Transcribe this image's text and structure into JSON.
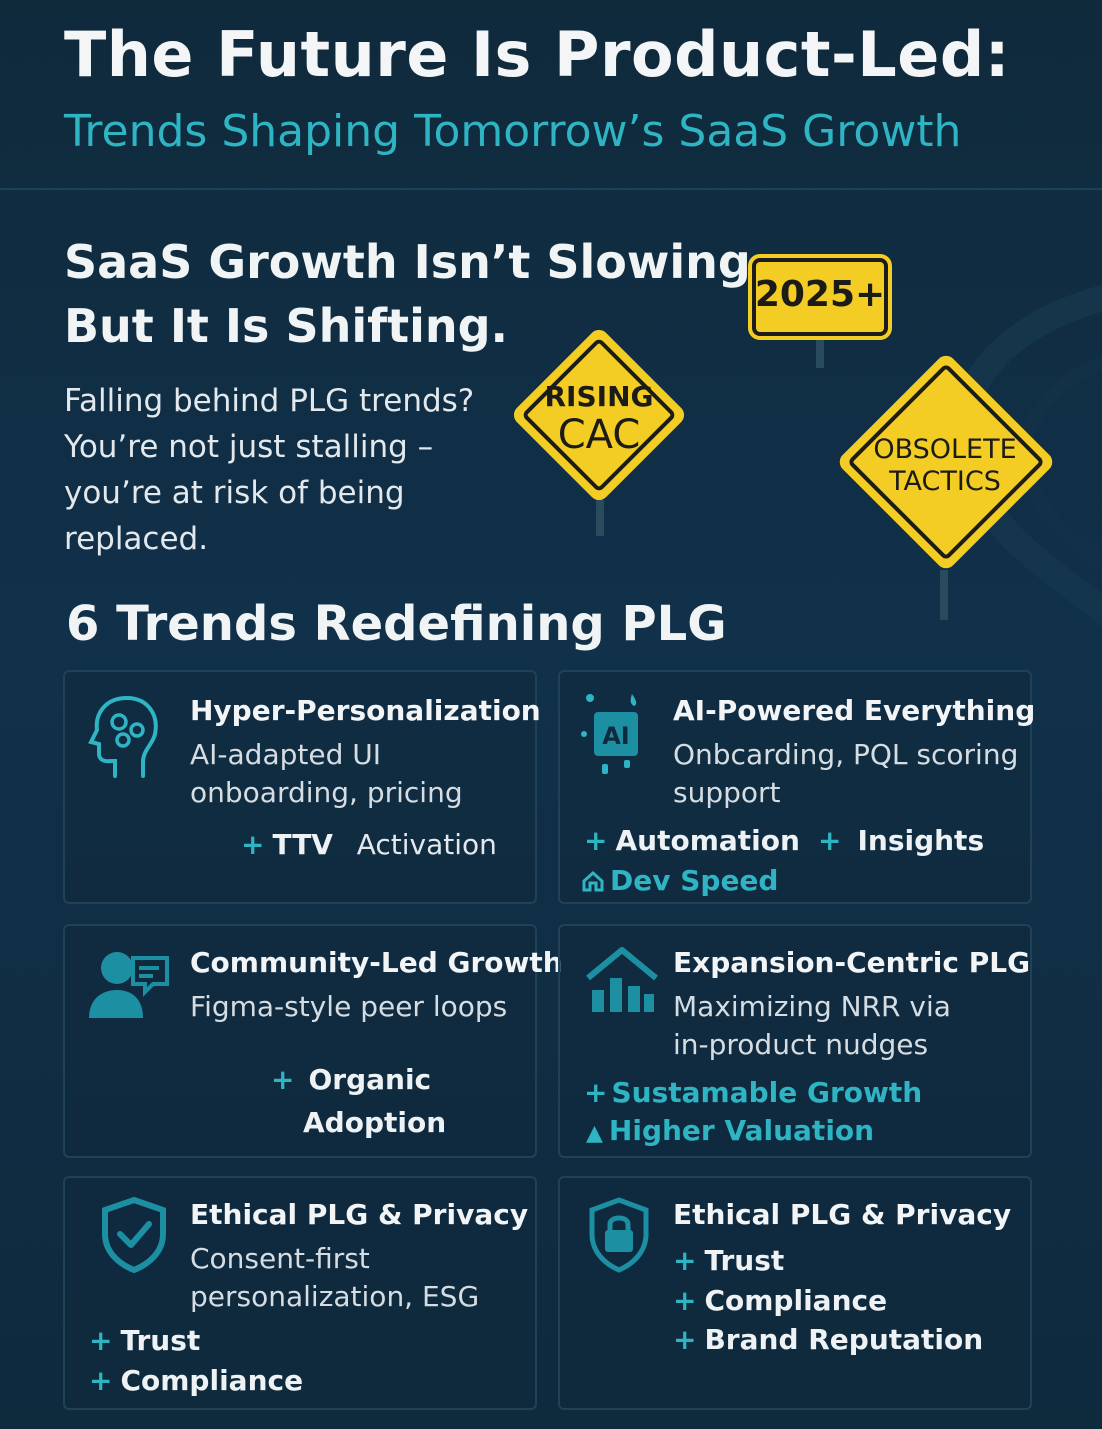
{
  "header": {
    "title": "The Future Is Product-Led:",
    "subtitle": "Trends Shaping Tomorrow’s SaaS Growth"
  },
  "hero": {
    "headline_line1": "SaaS Growth Isn’t Slowing.",
    "headline_line2": "But It Is Shifting.",
    "intro": "Falling behind PLG trends? You’re not just stalling – you’re at risk of being replaced."
  },
  "signs": {
    "year": "2025+",
    "rising_line1": "RISING",
    "rising_line2": "CAC",
    "obsolete_line1": "OBSOLETE",
    "obsolete_line2": "TACTICS"
  },
  "section": {
    "title": "6 Trends Redefining PLG"
  },
  "cards": [
    {
      "title": "Hyper-Personalization",
      "desc_line1": "AI-adapted UI",
      "desc_line2": "onboarding, pricing",
      "benefit_plus": "+",
      "benefit_a": "TTV",
      "benefit_b": "Activation",
      "icon": "head-gears-icon"
    },
    {
      "title": "AI-Powered Everything",
      "desc_line1": "Onbcarding, PQL scoring",
      "desc_line2": "support",
      "benefits": [
        "Automation",
        "Insights"
      ],
      "extra": "Dev Speed",
      "icon": "ai-chip-icon"
    },
    {
      "title": "Community-Led Growth",
      "desc_line1": "Figma-style peer loops",
      "benefit_line1": "Organic",
      "benefit_line2": "Adoption",
      "icon": "community-chat-icon"
    },
    {
      "title": "Expansion-Centric PLG",
      "desc_line1": "Maximizing NRR via",
      "desc_line2": "in-product nudges",
      "benefit_a": "Sustamable Growth",
      "benefit_b": "Higher Valuation",
      "icon": "house-growth-icon"
    },
    {
      "title": "Ethical PLG & Privacy",
      "desc_line1": "Consent-first",
      "desc_line2": "personalization, ESG",
      "benefits": [
        "Trust",
        "Compliance"
      ],
      "icon": "shield-check-icon"
    },
    {
      "title": "Ethical PLG & Privacy",
      "benefits": [
        "Trust",
        "Compliance",
        "Brand Reputation"
      ],
      "icon": "shield-lock-icon"
    }
  ],
  "colors": {
    "background": "#0f2a3c",
    "accent": "#2fb4c4",
    "sign_yellow": "#f4cd24"
  }
}
